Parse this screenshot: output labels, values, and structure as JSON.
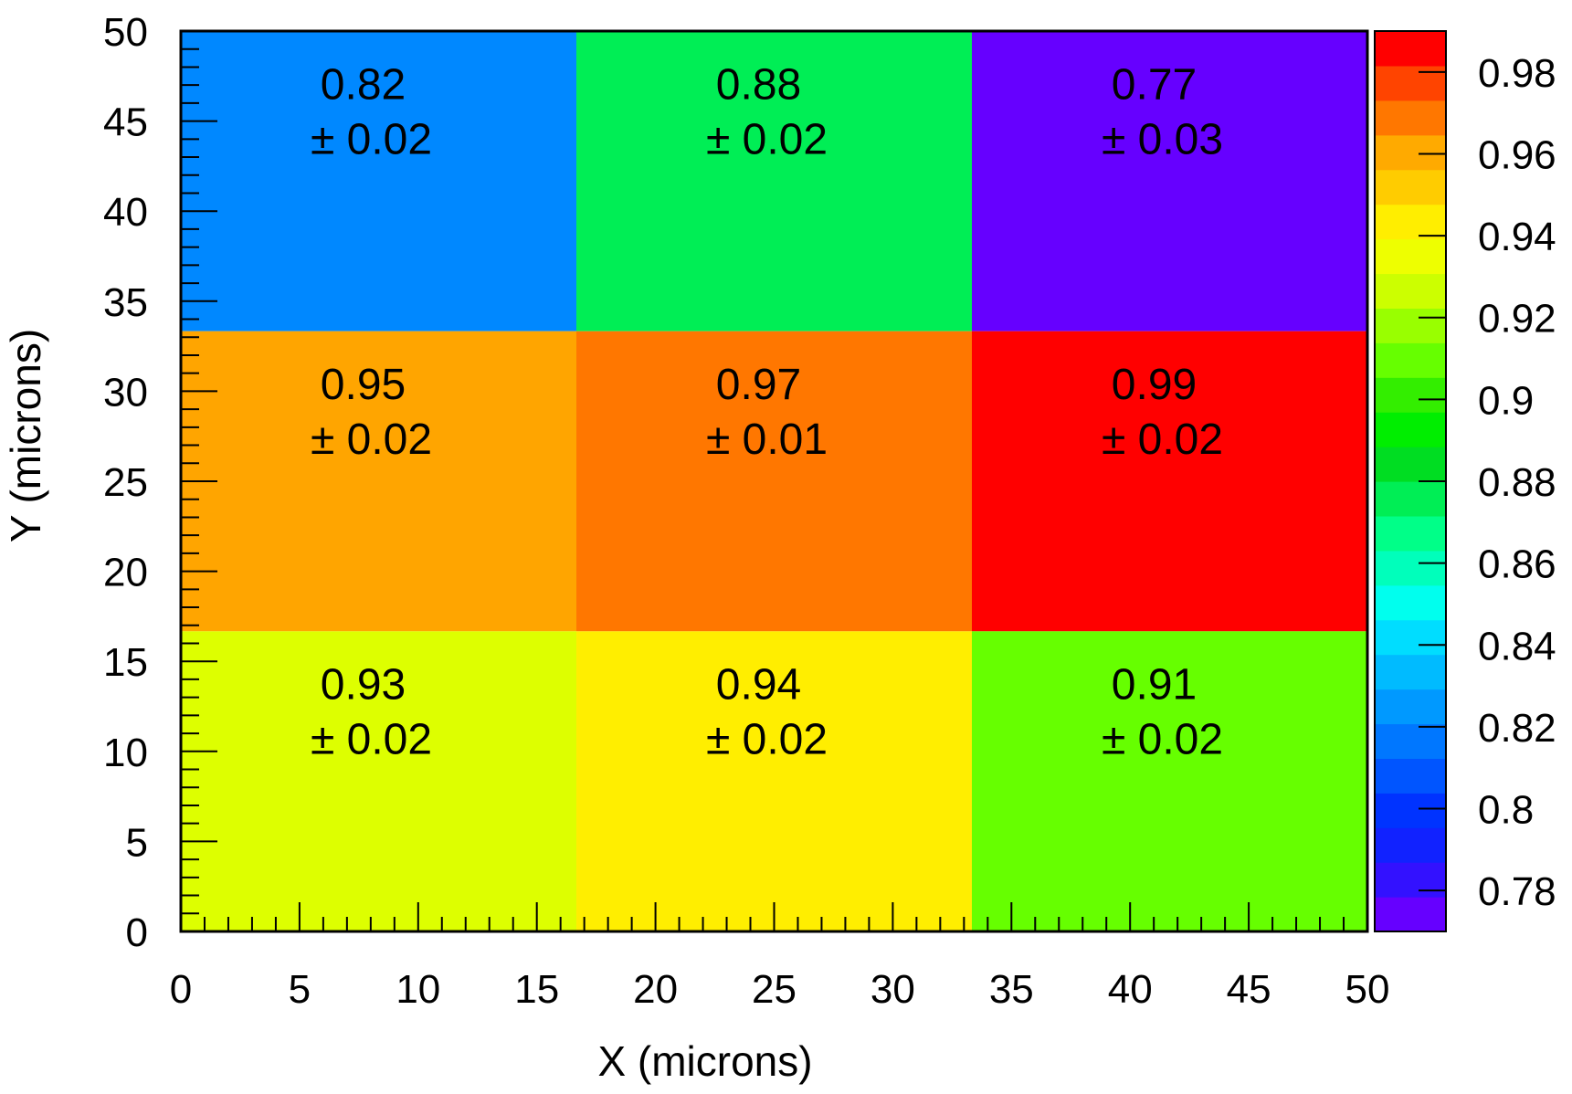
{
  "chart_data": {
    "type": "heatmap",
    "title": "",
    "xlabel": "X (microns)",
    "ylabel": "Y (microns)",
    "xlim": [
      0,
      50
    ],
    "ylim": [
      0,
      50
    ],
    "x_ticks": [
      "0",
      "5",
      "10",
      "15",
      "20",
      "25",
      "30",
      "35",
      "40",
      "45",
      "50"
    ],
    "y_ticks": [
      "0",
      "5",
      "10",
      "15",
      "20",
      "25",
      "30",
      "35",
      "40",
      "45",
      "50"
    ],
    "x_bin_edges": [
      0,
      16.667,
      33.333,
      50
    ],
    "y_bin_edges": [
      0,
      16.667,
      33.333,
      50
    ],
    "cells": [
      {
        "row": 2,
        "col": 0,
        "value": "0.82",
        "error": "± 0.02",
        "color": "#0088ff"
      },
      {
        "row": 2,
        "col": 1,
        "value": "0.88",
        "error": "± 0.02",
        "color": "#00ee55"
      },
      {
        "row": 2,
        "col": 2,
        "value": "0.77",
        "error": "± 0.03",
        "color": "#6600ff"
      },
      {
        "row": 1,
        "col": 0,
        "value": "0.95",
        "error": "± 0.02",
        "color": "#ffa500"
      },
      {
        "row": 1,
        "col": 1,
        "value": "0.97",
        "error": "± 0.01",
        "color": "#ff7700"
      },
      {
        "row": 1,
        "col": 2,
        "value": "0.99",
        "error": "± 0.02",
        "color": "#ff0000"
      },
      {
        "row": 0,
        "col": 0,
        "value": "0.93",
        "error": "± 0.02",
        "color": "#ddff00"
      },
      {
        "row": 0,
        "col": 1,
        "value": "0.94",
        "error": "± 0.02",
        "color": "#ffee00"
      },
      {
        "row": 0,
        "col": 2,
        "value": "0.91",
        "error": "± 0.02",
        "color": "#66ff00"
      }
    ],
    "colorbar": {
      "min": 0.77,
      "max": 0.99,
      "tick_values": [
        0.78,
        0.8,
        0.82,
        0.84,
        0.86,
        0.88,
        0.9,
        0.92,
        0.94,
        0.96,
        0.98
      ],
      "tick_labels": [
        "0.78",
        "0.8",
        "0.82",
        "0.84",
        "0.86",
        "0.88",
        "0.9",
        "0.92",
        "0.94",
        "0.96",
        "0.98"
      ],
      "colors_bottom_to_top": [
        "#6600ff",
        "#3311ff",
        "#1122ff",
        "#0033ff",
        "#0055ff",
        "#0077ff",
        "#0099ff",
        "#00bbff",
        "#00ddff",
        "#00ffee",
        "#00ffbb",
        "#00ff88",
        "#00ee55",
        "#00dd22",
        "#00ee00",
        "#33ee00",
        "#66ff00",
        "#99ff00",
        "#ccff00",
        "#eeff00",
        "#ffee00",
        "#ffcc00",
        "#ffaa00",
        "#ff7700",
        "#ff4400",
        "#ff0000"
      ]
    }
  }
}
